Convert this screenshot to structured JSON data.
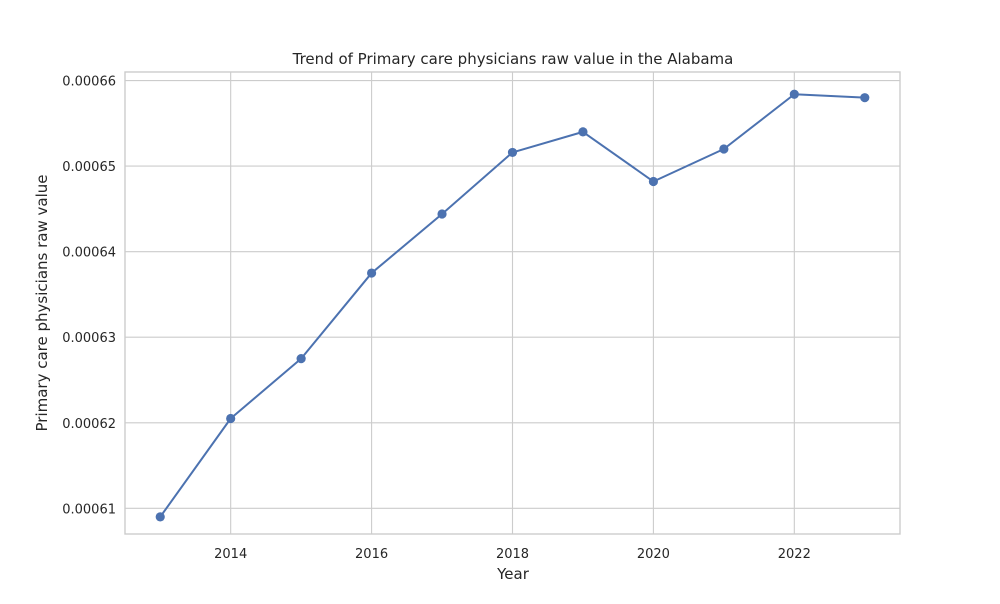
{
  "chart_data": {
    "type": "line",
    "title": "Trend of Primary care physicians raw value in the Alabama",
    "xlabel": "Year",
    "ylabel": "Primary care physicians raw value",
    "xlim": [
      2012.5,
      2023.5
    ],
    "ylim": [
      0.000607,
      0.000661
    ],
    "x_ticks": [
      2014,
      2016,
      2018,
      2020,
      2022
    ],
    "x_tick_labels": [
      "2014",
      "2016",
      "2018",
      "2020",
      "2022"
    ],
    "y_ticks": [
      0.00061,
      0.00062,
      0.00063,
      0.00064,
      0.00065,
      0.00066
    ],
    "y_tick_labels": [
      "0.00061",
      "0.00062",
      "0.00063",
      "0.00064",
      "0.00065",
      "0.00066"
    ],
    "grid": true,
    "series": [
      {
        "color": "#4c72b0",
        "marker": "circle",
        "x": [
          2013,
          2014,
          2015,
          2016,
          2017,
          2018,
          2019,
          2020,
          2021,
          2022,
          2023
        ],
        "y": [
          0.000609,
          0.0006205,
          0.0006275,
          0.0006375,
          0.0006444,
          0.0006516,
          0.000654,
          0.0006482,
          0.000652,
          0.0006584,
          0.000658
        ]
      }
    ]
  }
}
